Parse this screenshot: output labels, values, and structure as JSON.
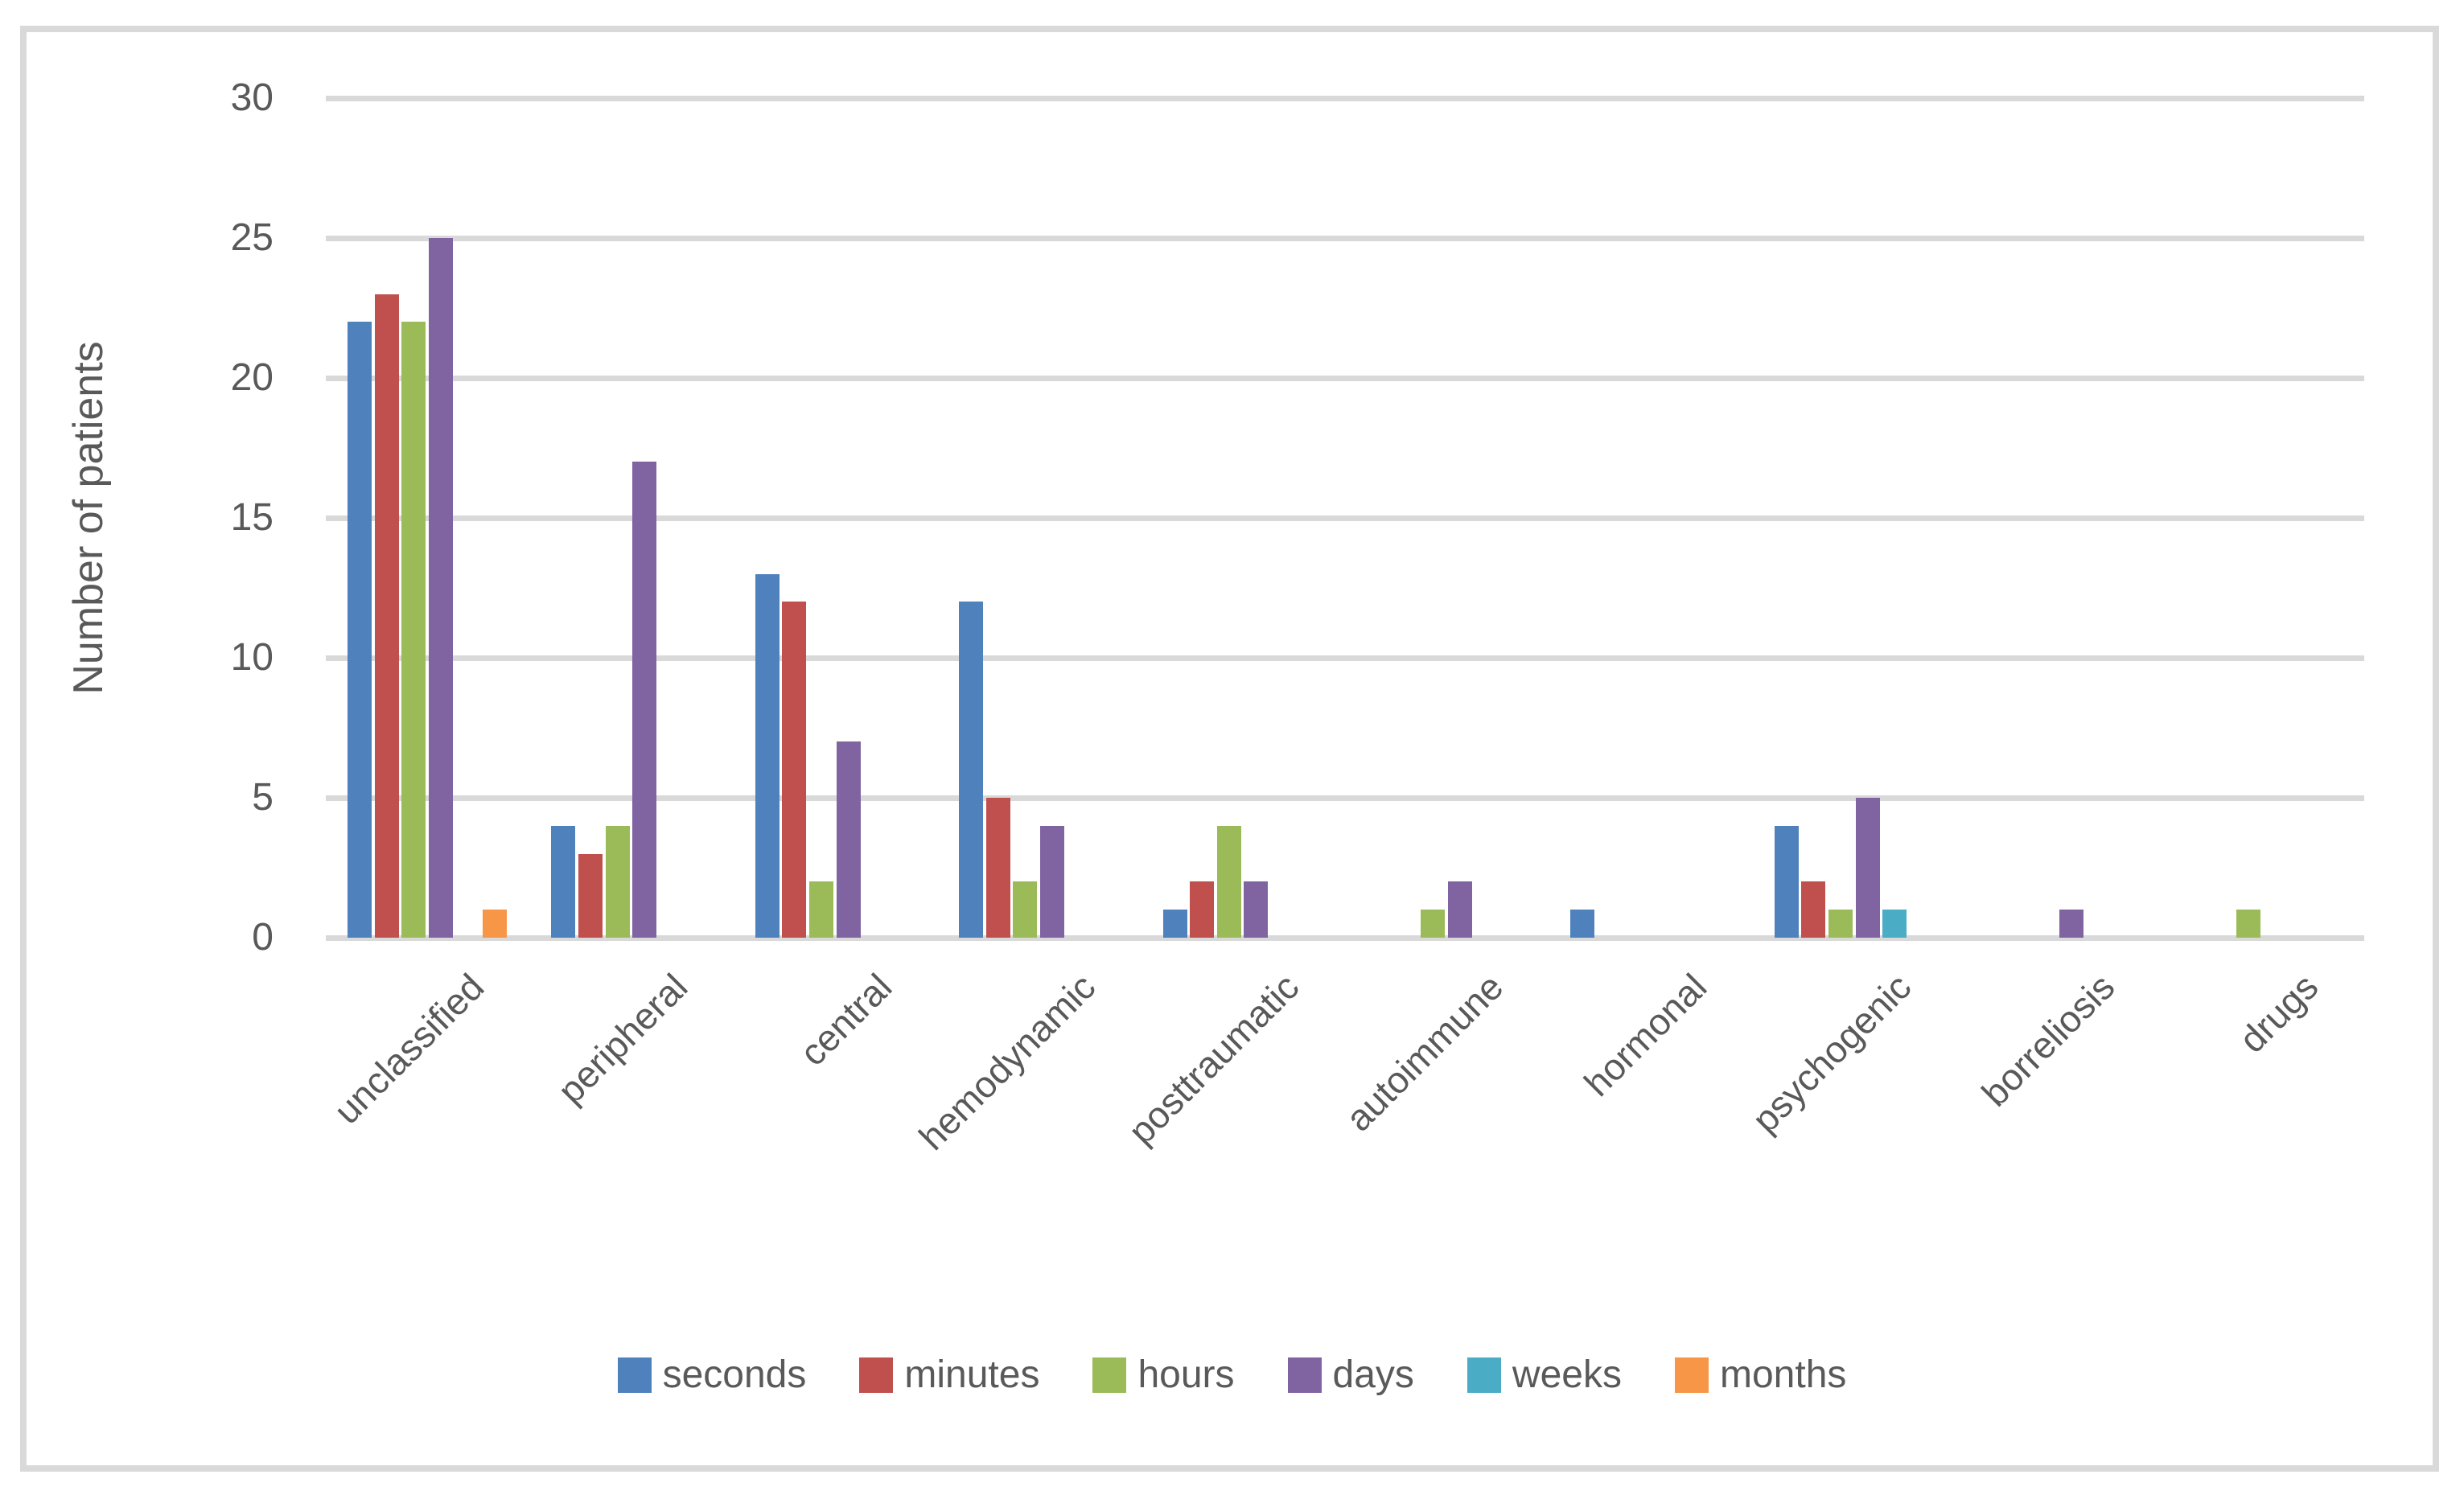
{
  "chart_data": {
    "type": "bar",
    "title": "",
    "xlabel": "",
    "ylabel": "Number of patients",
    "ylim": [
      0,
      30
    ],
    "ytick_step": 5,
    "yticks": [
      0,
      5,
      10,
      15,
      20,
      25,
      30
    ],
    "grid": true,
    "legend_position": "bottom",
    "categories": [
      "unclassified",
      "peripheral",
      "central",
      "hemodynamic",
      "posttraumatic",
      "autoimmune",
      "hormonal",
      "psychogenic",
      "borreliosis",
      "drugs"
    ],
    "series": [
      {
        "name": "seconds",
        "color": "#4F81BD",
        "values": [
          22,
          4,
          13,
          12,
          1,
          0,
          1,
          4,
          0,
          0
        ]
      },
      {
        "name": "minutes",
        "color": "#C0504D",
        "values": [
          23,
          3,
          12,
          5,
          2,
          0,
          0,
          2,
          0,
          0
        ]
      },
      {
        "name": "hours",
        "color": "#9BBB59",
        "values": [
          22,
          4,
          2,
          2,
          4,
          1,
          0,
          1,
          0,
          1
        ]
      },
      {
        "name": "days",
        "color": "#8064A2",
        "values": [
          25,
          17,
          7,
          4,
          2,
          2,
          0,
          5,
          1,
          0
        ]
      },
      {
        "name": "weeks",
        "color": "#4BACC6",
        "values": [
          0,
          0,
          0,
          0,
          0,
          0,
          0,
          1,
          0,
          0
        ]
      },
      {
        "name": "months",
        "color": "#F79646",
        "values": [
          1,
          0,
          0,
          0,
          0,
          0,
          0,
          0,
          0,
          0
        ]
      }
    ]
  },
  "styles": {
    "grid_color": "#D9D9D9",
    "border_color": "#D9D9D9",
    "text_color": "#595959",
    "background": "#FFFFFF"
  }
}
